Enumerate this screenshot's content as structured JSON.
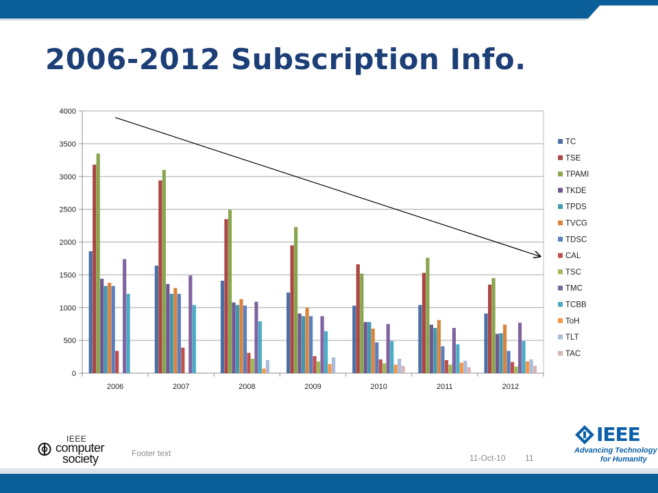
{
  "slide": {
    "title": "2006-2012 Subscription Info.",
    "footer_text": "Footer text",
    "date": "11-Oct-10",
    "page_number": "11"
  },
  "logos": {
    "computer_society": {
      "ieee": "IEEE",
      "line1": "computer",
      "line2": "society"
    },
    "ieee": {
      "word": "IEEE",
      "tagline1": "Advancing Technology",
      "tagline2": "for Humanity"
    }
  },
  "colors": {
    "header_bar": "#0b5f99",
    "title": "#1d3f77",
    "ieee_blue": "#0a5fa8"
  },
  "chart_data": {
    "type": "bar",
    "title": "",
    "xlabel": "",
    "ylabel": "",
    "categories": [
      "2006",
      "2007",
      "2008",
      "2009",
      "2010",
      "2011",
      "2012"
    ],
    "ylim": [
      0,
      4000
    ],
    "yticks": [
      0,
      500,
      1000,
      1500,
      2000,
      2500,
      3000,
      3500,
      4000
    ],
    "grid": true,
    "legend_position": "right",
    "annotations": [
      {
        "type": "arrow",
        "from": [
          "2006",
          3900
        ],
        "to": [
          "2012",
          1780
        ],
        "color": "#000000"
      }
    ],
    "series": [
      {
        "name": "TC",
        "color": "#4a6fa2",
        "values": [
          1860,
          1640,
          1410,
          1230,
          1030,
          1040,
          910
        ]
      },
      {
        "name": "TSE",
        "color": "#aa4643",
        "values": [
          3180,
          2940,
          2350,
          1950,
          1660,
          1530,
          1350
        ]
      },
      {
        "name": "TPAMI",
        "color": "#89a54e",
        "values": [
          3350,
          3100,
          2490,
          2230,
          1520,
          1760,
          1450
        ]
      },
      {
        "name": "TKDE",
        "color": "#71588f",
        "values": [
          1440,
          1360,
          1080,
          910,
          780,
          740,
          600
        ]
      },
      {
        "name": "TPDS",
        "color": "#4198af",
        "values": [
          1330,
          1210,
          1040,
          870,
          780,
          690,
          610
        ]
      },
      {
        "name": "TVCG",
        "color": "#db843d",
        "values": [
          1380,
          1300,
          1130,
          1000,
          680,
          810,
          740
        ]
      },
      {
        "name": "TDSC",
        "color": "#5a7fbf",
        "values": [
          1330,
          1210,
          1030,
          870,
          470,
          410,
          340
        ]
      },
      {
        "name": "CAL",
        "color": "#c0504d",
        "values": [
          340,
          390,
          310,
          260,
          210,
          200,
          170
        ]
      },
      {
        "name": "TSC",
        "color": "#9bbb59",
        "values": [
          0,
          0,
          220,
          180,
          150,
          130,
          100
        ]
      },
      {
        "name": "TMC",
        "color": "#8064a2",
        "values": [
          1740,
          1490,
          1090,
          870,
          750,
          690,
          770
        ]
      },
      {
        "name": "TCBB",
        "color": "#4bacc6",
        "values": [
          1210,
          1040,
          790,
          640,
          490,
          440,
          490
        ]
      },
      {
        "name": "ToH",
        "color": "#f79646",
        "values": [
          0,
          0,
          70,
          140,
          130,
          160,
          180
        ]
      },
      {
        "name": "TLT",
        "color": "#a9bcdc",
        "values": [
          0,
          0,
          200,
          240,
          220,
          190,
          210
        ]
      },
      {
        "name": "TAC",
        "color": "#dbb3b0",
        "values": [
          0,
          0,
          0,
          0,
          110,
          90,
          110
        ]
      }
    ]
  }
}
